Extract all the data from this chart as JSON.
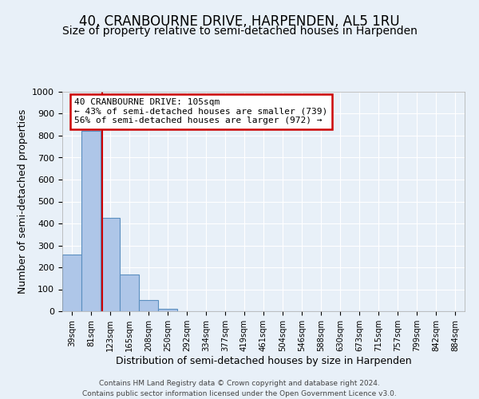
{
  "title": "40, CRANBOURNE DRIVE, HARPENDEN, AL5 1RU",
  "subtitle": "Size of property relative to semi-detached houses in Harpenden",
  "xlabel": "Distribution of semi-detached houses by size in Harpenden",
  "ylabel": "Number of semi-detached properties",
  "footer_line1": "Contains HM Land Registry data © Crown copyright and database right 2024.",
  "footer_line2": "Contains public sector information licensed under the Open Government Licence v3.0.",
  "categories": [
    "39sqm",
    "81sqm",
    "123sqm",
    "165sqm",
    "208sqm",
    "250sqm",
    "292sqm",
    "334sqm",
    "377sqm",
    "419sqm",
    "461sqm",
    "504sqm",
    "546sqm",
    "588sqm",
    "630sqm",
    "673sqm",
    "715sqm",
    "757sqm",
    "799sqm",
    "842sqm",
    "884sqm"
  ],
  "values": [
    260,
    820,
    425,
    168,
    50,
    10,
    0,
    0,
    0,
    0,
    0,
    0,
    0,
    0,
    0,
    0,
    0,
    0,
    0,
    0,
    0
  ],
  "bar_color": "#aec6e8",
  "bar_edge_color": "#5a8fc0",
  "property_line_x": 1.6,
  "property_line_color": "#cc0000",
  "annotation_title": "40 CRANBOURNE DRIVE: 105sqm",
  "annotation_line1": "← 43% of semi-detached houses are smaller (739)",
  "annotation_line2": "56% of semi-detached houses are larger (972) →",
  "annotation_box_color": "#cc0000",
  "ylim": [
    0,
    1000
  ],
  "yticks": [
    0,
    100,
    200,
    300,
    400,
    500,
    600,
    700,
    800,
    900,
    1000
  ],
  "bg_color": "#e8f0f8",
  "plot_bg_color": "#e8f0f8",
  "title_fontsize": 12,
  "subtitle_fontsize": 10
}
